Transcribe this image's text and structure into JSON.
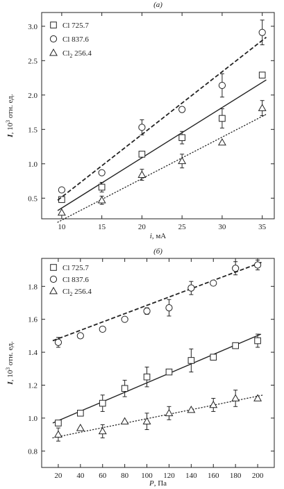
{
  "chart_data": [
    {
      "type": "scatter",
      "panel_label": "(а)",
      "xlabel_var": "i",
      "xlabel_unit": ", мА",
      "ylabel_var": "I",
      "ylabel_mid": ", 10",
      "ylabel_sup": "3",
      "ylabel_unit": " отн. ед.",
      "xlim": [
        7.5,
        36.5
      ],
      "ylim": [
        0.2,
        3.2
      ],
      "xticks": [
        10,
        15,
        20,
        25,
        30,
        35
      ],
      "yticks": [
        0.5,
        1.0,
        1.5,
        2.0,
        2.5,
        3.0
      ],
      "ytick_labels": [
        "0.5",
        "1.0",
        "1.5",
        "2.0",
        "2.5",
        "3.0"
      ],
      "legend_position": "top-left",
      "series": [
        {
          "name": "Cl 725.7",
          "marker": "square",
          "line": "solid",
          "x": [
            10,
            15,
            20,
            25,
            30,
            35
          ],
          "y": [
            0.48,
            0.66,
            1.14,
            1.38,
            1.66,
            2.29
          ],
          "err": [
            0,
            0.07,
            0,
            0.09,
            0.14,
            0
          ],
          "fit": [
            [
              9.5,
              0.32
            ],
            [
              35.5,
              2.22
            ]
          ]
        },
        {
          "name": "Cl 837.6",
          "marker": "circle",
          "line": "dashed",
          "x": [
            10,
            15,
            20,
            25,
            30,
            35
          ],
          "y": [
            0.62,
            0.87,
            1.53,
            1.79,
            2.14,
            2.91
          ],
          "err": [
            0,
            0,
            0.11,
            0,
            0.17,
            0.18
          ],
          "fit": [
            [
              9.5,
              0.47
            ],
            [
              35.5,
              2.84
            ]
          ]
        },
        {
          "name": "Cl",
          "name_sub": "2",
          "name_rest": " 256.4",
          "marker": "triangle",
          "line": "dotted",
          "x": [
            10,
            15,
            20,
            25,
            30,
            35
          ],
          "y": [
            0.29,
            0.47,
            0.84,
            1.04,
            1.31,
            1.81
          ],
          "err": [
            0,
            0.06,
            0.08,
            0.1,
            0,
            0.11
          ],
          "fit": [
            [
              9.5,
              0.15
            ],
            [
              35.5,
              1.72
            ]
          ]
        }
      ]
    },
    {
      "type": "scatter",
      "panel_label": "(б)",
      "xlabel_var": "P",
      "xlabel_unit": ", Па",
      "ylabel_var": "I",
      "ylabel_mid": ", 10",
      "ylabel_sup": "3",
      "ylabel_unit": " отн. ед.",
      "xlim": [
        5,
        215
      ],
      "ylim": [
        0.7,
        1.97
      ],
      "xticks": [
        20,
        40,
        60,
        80,
        100,
        120,
        140,
        160,
        180,
        200
      ],
      "yticks": [
        0.8,
        1.0,
        1.2,
        1.4,
        1.6,
        1.8
      ],
      "ytick_labels": [
        "0.8",
        "1.0",
        "1.2",
        "1.4",
        "1.6",
        "1.8"
      ],
      "legend_position": "top-left",
      "series": [
        {
          "name": "Cl 725.7",
          "marker": "square",
          "line": "solid",
          "x": [
            20,
            40,
            60,
            80,
            100,
            120,
            140,
            160,
            180,
            200
          ],
          "y": [
            0.97,
            1.03,
            1.09,
            1.18,
            1.25,
            1.28,
            1.35,
            1.37,
            1.44,
            1.47
          ],
          "err": [
            0,
            0,
            0.05,
            0.05,
            0.06,
            0,
            0.07,
            0,
            0,
            0.04
          ],
          "fit": [
            [
              15,
              0.97
            ],
            [
              203,
              1.51
            ]
          ]
        },
        {
          "name": "Cl 837.6",
          "marker": "circle",
          "line": "dashed",
          "x": [
            20,
            40,
            60,
            80,
            100,
            120,
            140,
            160,
            180,
            200
          ],
          "y": [
            1.46,
            1.5,
            1.54,
            1.6,
            1.65,
            1.67,
            1.79,
            1.82,
            1.91,
            1.93
          ],
          "err": [
            0.03,
            0,
            0,
            0,
            0.02,
            0.05,
            0.04,
            0,
            0.04,
            0.03
          ],
          "fit": [
            [
              15,
              1.47
            ],
            [
              205,
              1.95
            ]
          ]
        },
        {
          "name": "Cl",
          "name_sub": "2",
          "name_rest": " 256.4",
          "marker": "triangle",
          "line": "dotted",
          "x": [
            20,
            40,
            60,
            80,
            100,
            120,
            140,
            160,
            180,
            200
          ],
          "y": [
            0.9,
            0.94,
            0.92,
            0.98,
            0.98,
            1.03,
            1.05,
            1.08,
            1.12,
            1.12
          ],
          "err": [
            0.04,
            0,
            0.04,
            0,
            0.05,
            0.04,
            0,
            0.04,
            0.05,
            0
          ],
          "fit": [
            [
              15,
              0.88
            ],
            [
              205,
              1.14
            ]
          ]
        }
      ]
    }
  ]
}
